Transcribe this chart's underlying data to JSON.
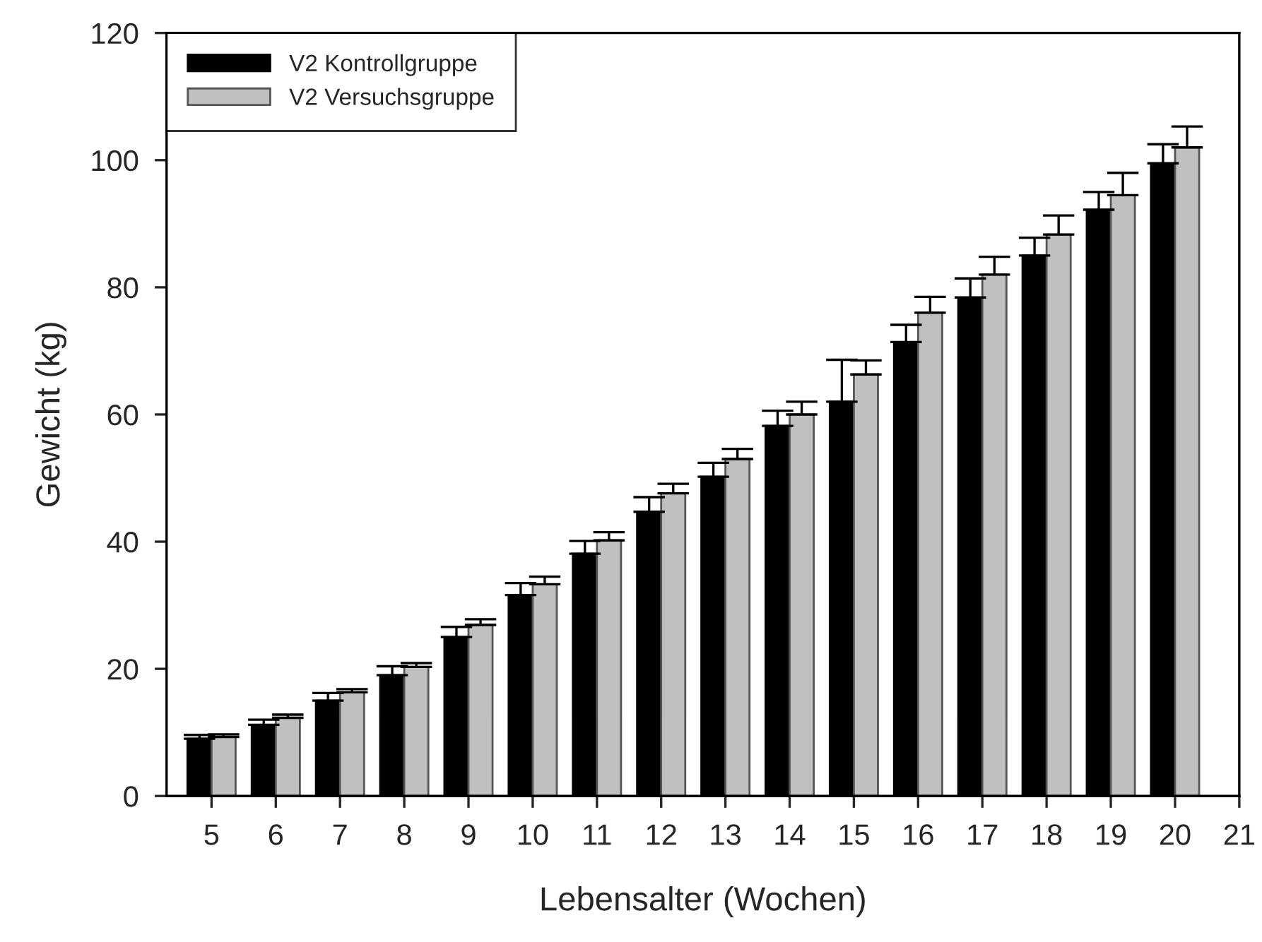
{
  "chart_data": {
    "type": "bar",
    "xlabel": "Lebensalter (Wochen)",
    "ylabel": "Gewicht (kg)",
    "x": [
      5,
      6,
      7,
      8,
      9,
      10,
      11,
      12,
      13,
      14,
      15,
      16,
      17,
      18,
      19,
      20
    ],
    "series": [
      {
        "name": "V2 Kontrollgruppe",
        "color": "#000000",
        "values": [
          9.0,
          11.2,
          15.0,
          19.0,
          25.0,
          31.6,
          38.1,
          44.7,
          50.2,
          58.2,
          62.0,
          71.4,
          78.4,
          85.0,
          92.2,
          99.5
        ],
        "errors": [
          [
            9.0,
            9.6
          ],
          [
            11.2,
            12.0
          ],
          [
            15.0,
            16.2
          ],
          [
            19.0,
            20.4
          ],
          [
            25.0,
            26.6
          ],
          [
            31.6,
            33.5
          ],
          [
            38.1,
            40.1
          ],
          [
            44.7,
            47.0
          ],
          [
            50.2,
            52.4
          ],
          [
            58.2,
            60.6
          ],
          [
            62.0,
            68.6
          ],
          [
            71.4,
            74.1
          ],
          [
            78.4,
            81.4
          ],
          [
            85.0,
            87.8
          ],
          [
            92.2,
            95.0
          ],
          [
            99.5,
            102.5
          ]
        ]
      },
      {
        "name": "V2 Versuchsgruppe",
        "color": "#c0c0c0",
        "values": [
          9.3,
          12.3,
          16.3,
          20.3,
          26.9,
          33.3,
          40.2,
          47.6,
          53.0,
          60.0,
          66.3,
          76.0,
          82.0,
          88.3,
          94.5,
          102.0
        ],
        "errors": [
          [
            9.3,
            9.7
          ],
          [
            12.3,
            12.8
          ],
          [
            16.3,
            16.8
          ],
          [
            20.3,
            20.9
          ],
          [
            26.9,
            27.8
          ],
          [
            33.3,
            34.5
          ],
          [
            40.2,
            41.5
          ],
          [
            47.6,
            49.1
          ],
          [
            53.0,
            54.6
          ],
          [
            60.0,
            62.0
          ],
          [
            66.3,
            68.5
          ],
          [
            76.0,
            78.5
          ],
          [
            82.0,
            84.8
          ],
          [
            88.3,
            91.3
          ],
          [
            94.5,
            98.0
          ],
          [
            102.0,
            105.3
          ]
        ]
      }
    ],
    "xlim": [
      4.3,
      21
    ],
    "xticks": [
      5,
      6,
      7,
      8,
      9,
      10,
      11,
      12,
      13,
      14,
      15,
      16,
      17,
      18,
      19,
      20,
      21
    ],
    "ylim": [
      0,
      120
    ],
    "yticks": [
      0,
      20,
      40,
      60,
      80,
      100,
      120
    ],
    "grid": false,
    "legend": "top left"
  }
}
